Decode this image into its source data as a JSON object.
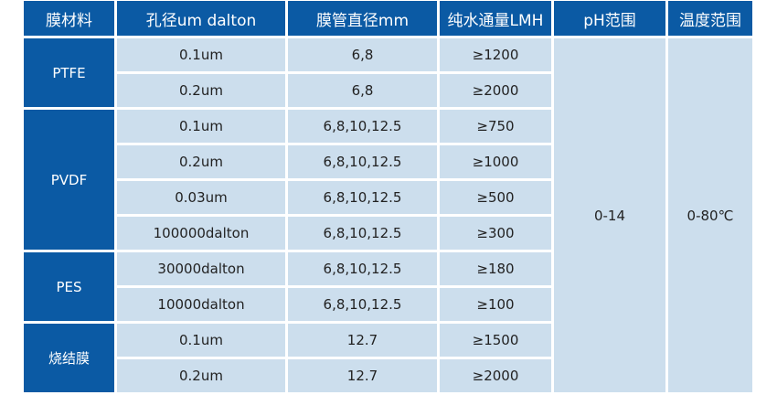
{
  "headers": [
    "膜材料",
    "孔径um dalton",
    "膜管直径mm",
    "纯水通量LMH",
    "pH范围",
    "温度范围"
  ],
  "ph_range": "0-14",
  "temp_range": "0-80℃",
  "groups": [
    {
      "material": "PTFE",
      "rows": [
        [
          "0.1um",
          "6,8",
          "≥1200"
        ],
        [
          "0.2um",
          "6,8",
          "≥2000"
        ]
      ]
    },
    {
      "material": "PVDF",
      "rows": [
        [
          "0.1um",
          "6,8,10,12.5",
          "≥750"
        ],
        [
          "0.2um",
          "6,8,10,12.5",
          "≥1000"
        ],
        [
          "0.03um",
          "6,8,10,12.5",
          "≥500"
        ],
        [
          "100000dalton",
          "6,8,10,12.5",
          "≥300"
        ]
      ]
    },
    {
      "material": "PES",
      "rows": [
        [
          "30000dalton",
          "6,8,10,12.5",
          "≥180"
        ],
        [
          "10000dalton",
          "6,8,10,12.5",
          "≥100"
        ]
      ]
    },
    {
      "material": "烧结膜",
      "rows": [
        [
          "0.1um",
          "12.7",
          "≥1500"
        ],
        [
          "0.2um",
          "12.7",
          "≥2000"
        ]
      ]
    }
  ]
}
